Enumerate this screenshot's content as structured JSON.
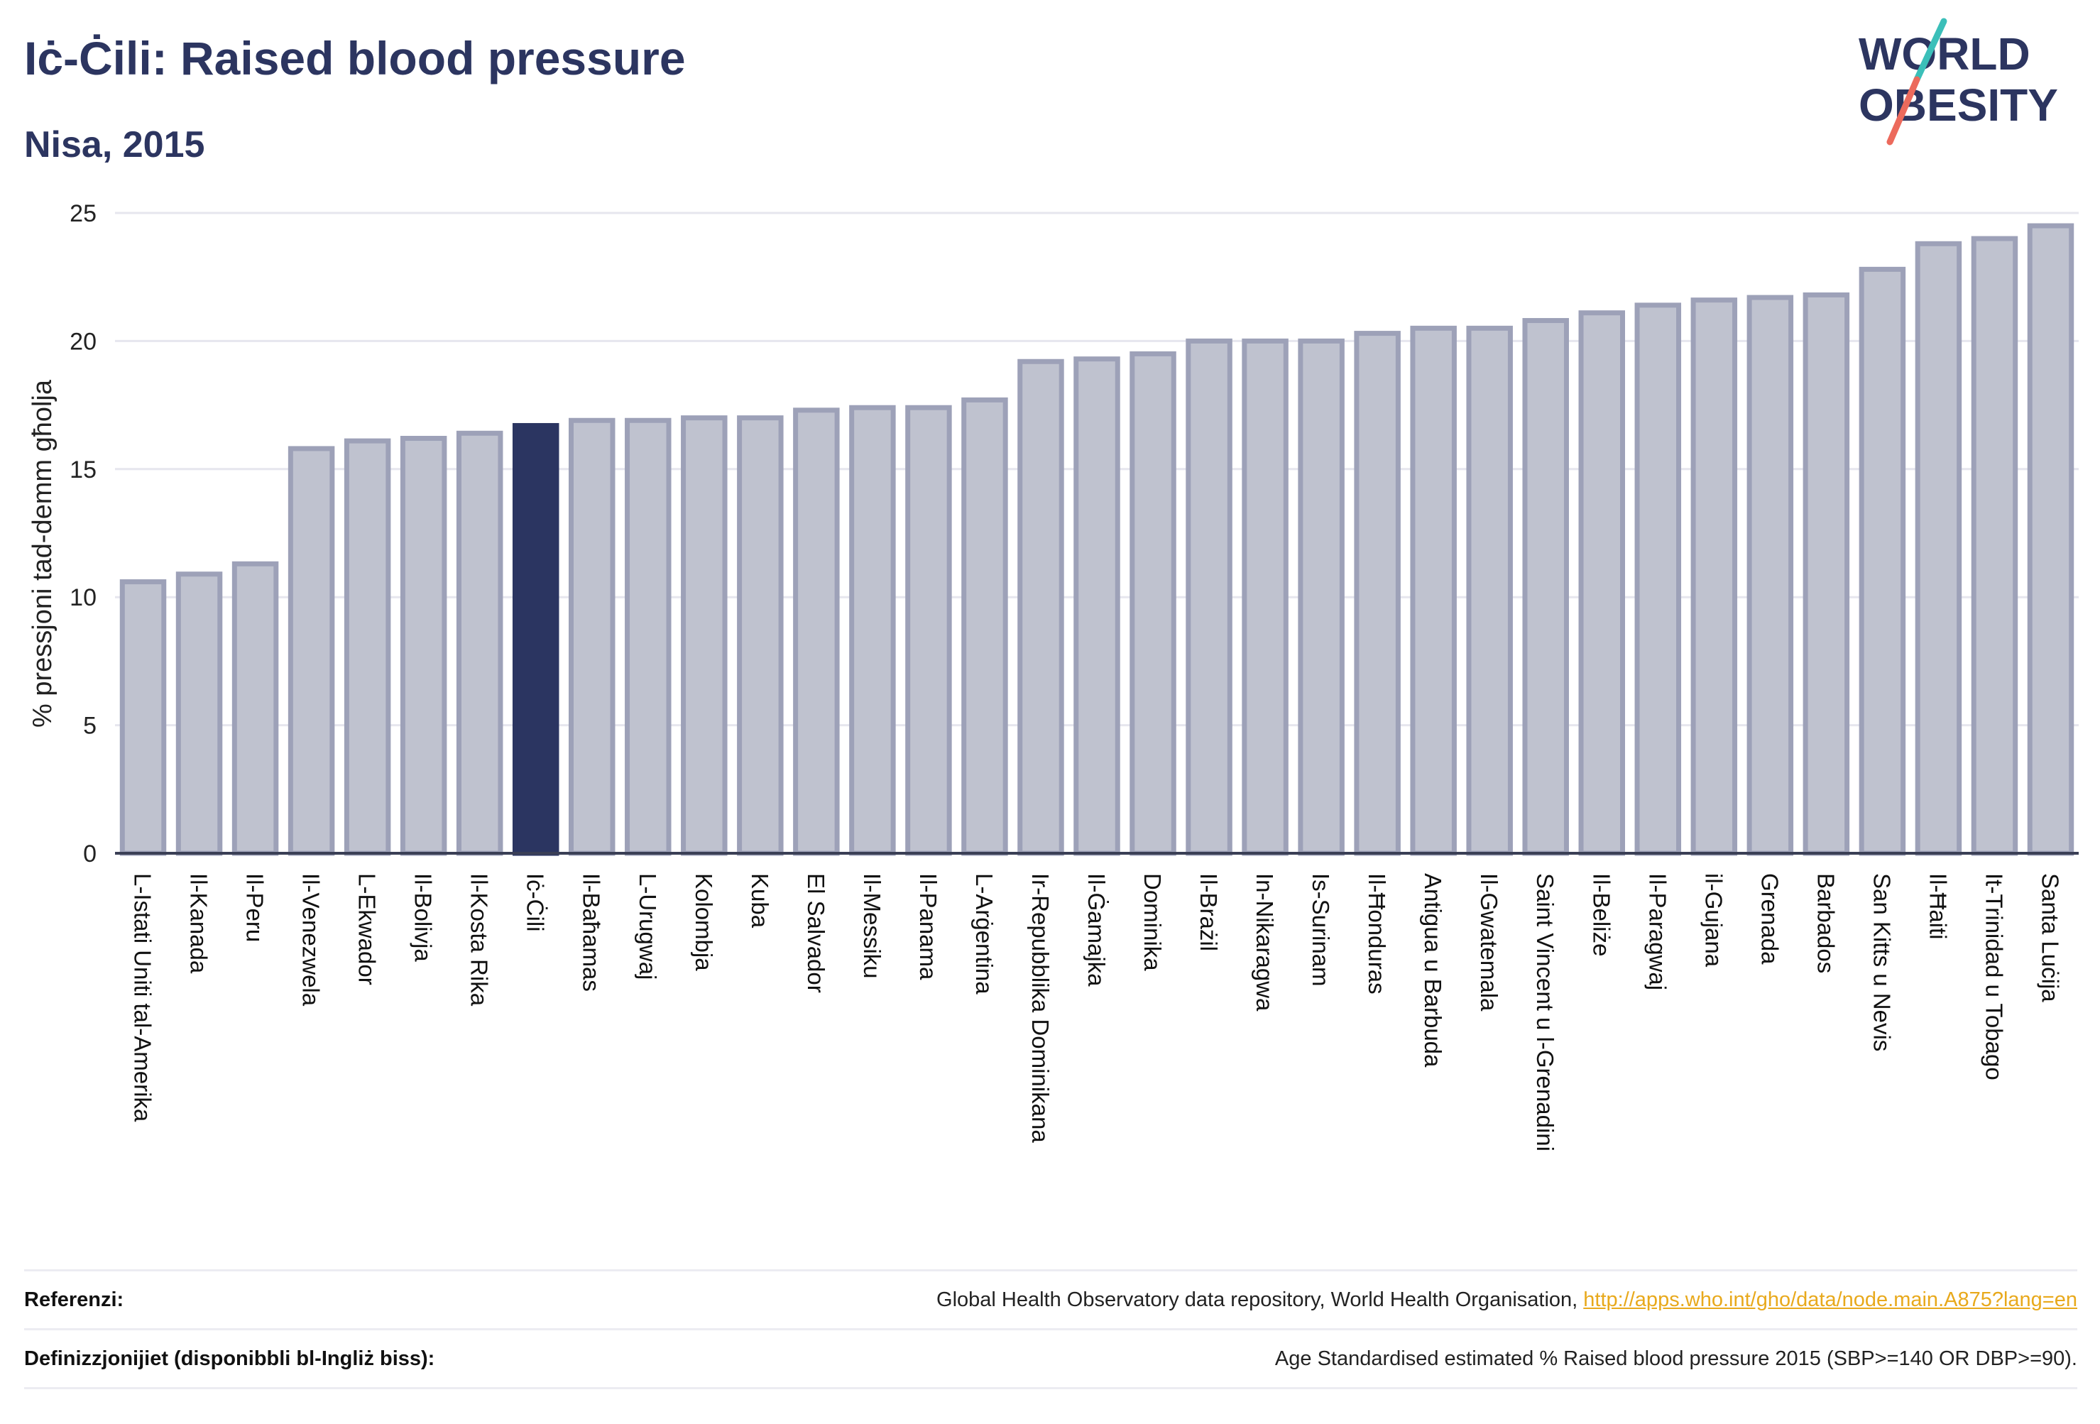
{
  "header": {
    "title": "Iċ-Ċili: Raised blood pressure",
    "subtitle": "Nisa, 2015"
  },
  "logo": {
    "line1": "WORLD",
    "line2": "OBESITY",
    "colors": {
      "text": "#2c3560",
      "slash_top": "#3bbfb9",
      "slash_bottom": "#ec6a5c"
    }
  },
  "chart_data": {
    "type": "bar",
    "title": "Iċ-Ċili: Raised blood pressure",
    "subtitle": "Nisa, 2015",
    "ylabel": "% pressjoni tad-demm għolja",
    "xlabel": "",
    "ylim": [
      0,
      25
    ],
    "yticks": [
      0,
      5,
      10,
      15,
      20,
      25
    ],
    "grid": true,
    "highlight": "Iċ-Ċili",
    "colors": {
      "bar": "#bfc2cf",
      "bar_border": "#9da1b8",
      "highlight": "#2b3561",
      "grid": "#e6e6ee"
    },
    "categories": [
      "L-Istati Uniti tal-Amerika",
      "Il-Kanada",
      "Il-Peru",
      "Il-Venezwela",
      "L-Ekwador",
      "Il-Bolivja",
      "Il-Kosta Rika",
      "Iċ-Ċili",
      "Il-Baħamas",
      "L-Urugwaj",
      "Kolombja",
      "Kuba",
      "El Salvador",
      "Il-Messiku",
      "Il-Panama",
      "L-Arġentina",
      "Ir-Repubblika Dominikana",
      "Il-Ġamajka",
      "Dominika",
      "Il-Brażil",
      "In-Nikaragwa",
      "Is-Surinam",
      "Il-Ħonduras",
      "Antigua u Barbuda",
      "Il-Gwatemala",
      "Saint Vincent u l-Grenadini",
      "Il-Beliże",
      "Il-Paragwaj",
      "il-Gujana",
      "Grenada",
      "Barbados",
      "San Kitts u Nevis",
      "Il-Ħaiti",
      "It-Trinidad u Tobago",
      "Santa Luċija"
    ],
    "values": [
      10.6,
      10.9,
      11.3,
      15.8,
      16.1,
      16.2,
      16.4,
      16.7,
      16.9,
      16.9,
      17.0,
      17.0,
      17.3,
      17.4,
      17.4,
      17.7,
      19.2,
      19.3,
      19.5,
      20.0,
      20.0,
      20.0,
      20.3,
      20.5,
      20.5,
      20.8,
      21.1,
      21.4,
      21.6,
      21.7,
      21.8,
      22.8,
      23.8,
      24.0,
      24.5
    ]
  },
  "footer": {
    "references_label": "Referenzi:",
    "references_text": "Global Health Observatory data repository, World Health Organisation, ",
    "references_link": "http://apps.who.int/gho/data/node.main.A875?lang=en",
    "definitions_label": "Definizzjonijiet (disponibbli bl-Ingliż biss):",
    "definitions_text": "Age Standardised estimated % Raised blood pressure 2015 (SBP>=140 OR DBP>=90)."
  }
}
